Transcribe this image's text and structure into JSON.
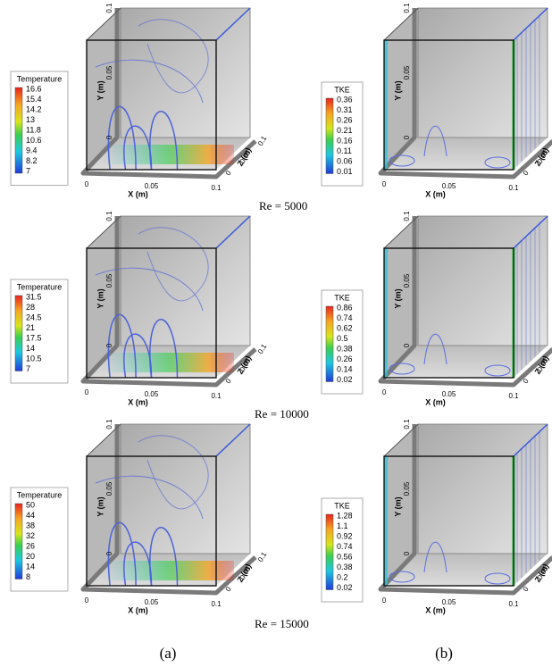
{
  "panels": [
    {
      "legend": {
        "title": "Temperature",
        "levels": [
          16.6,
          15.4,
          14.2,
          13,
          11.8,
          10.6,
          9.4,
          8.2,
          7
        ]
      },
      "axes": {
        "x_label": "X (m)",
        "y_label": "Y (m)",
        "z_label": "Z (m)",
        "x_ticks": [
          0,
          0.05,
          0.1
        ],
        "y_ticks": [
          0,
          0.05,
          0.1
        ],
        "z_ticks": [
          0,
          0.05,
          0.1
        ]
      }
    },
    {
      "legend": {
        "title": "TKE",
        "levels": [
          0.36,
          0.31,
          0.26,
          0.21,
          0.16,
          0.11,
          0.06,
          0.01
        ]
      },
      "axes": {
        "x_label": "X (m)",
        "y_label": "Y (m)",
        "z_label": "Z (m)",
        "x_ticks": [
          0,
          0.05,
          0.1
        ],
        "y_ticks": [
          0,
          0.05,
          0.1
        ],
        "z_ticks": [
          0,
          0.05,
          0.1
        ]
      }
    },
    {
      "legend": {
        "title": "Temperature",
        "levels": [
          31.5,
          28,
          24.5,
          21,
          17.5,
          14,
          10.5,
          7
        ]
      },
      "axes": {
        "x_label": "X (m)",
        "y_label": "Y (m)",
        "z_label": "Z (m)",
        "x_ticks": [
          0,
          0.05,
          0.1
        ],
        "y_ticks": [
          0,
          0.05,
          0.1
        ],
        "z_ticks": [
          0,
          0.05,
          0.1
        ]
      }
    },
    {
      "legend": {
        "title": "TKE",
        "levels": [
          0.86,
          0.74,
          0.62,
          0.5,
          0.38,
          0.26,
          0.14,
          0.02
        ]
      },
      "axes": {
        "x_label": "X (m)",
        "y_label": "Y (m)",
        "z_label": "Z (m)",
        "x_ticks": [
          0,
          0.05,
          0.1
        ],
        "y_ticks": [
          0,
          0.05,
          0.1
        ],
        "z_ticks": [
          0,
          0.05,
          0.1
        ]
      }
    },
    {
      "legend": {
        "title": "Temperature",
        "levels": [
          50,
          44,
          38,
          32,
          26,
          20,
          14,
          8
        ]
      },
      "axes": {
        "x_label": "X (m)",
        "y_label": "Y (m)",
        "z_label": "Z (m)",
        "x_ticks": [
          0,
          0.05,
          0.1
        ],
        "y_ticks": [
          0,
          0.05,
          0.1
        ],
        "z_ticks": [
          0,
          0.05,
          0.1
        ]
      }
    },
    {
      "legend": {
        "title": "TKE",
        "levels": [
          1.28,
          1.1,
          0.92,
          0.74,
          0.56,
          0.38,
          0.2,
          0.02
        ]
      },
      "axes": {
        "x_label": "X (m)",
        "y_label": "Y (m)",
        "z_label": "Z (m)",
        "x_ticks": [
          0,
          0.05,
          0.1
        ],
        "y_ticks": [
          0,
          0.05,
          0.1
        ],
        "z_ticks": [
          0,
          0.05,
          0.1
        ]
      }
    }
  ],
  "re_labels": [
    "Re = 5000",
    "Re = 10000",
    "Re = 15000"
  ],
  "captions": [
    "(a)",
    "(b)"
  ]
}
